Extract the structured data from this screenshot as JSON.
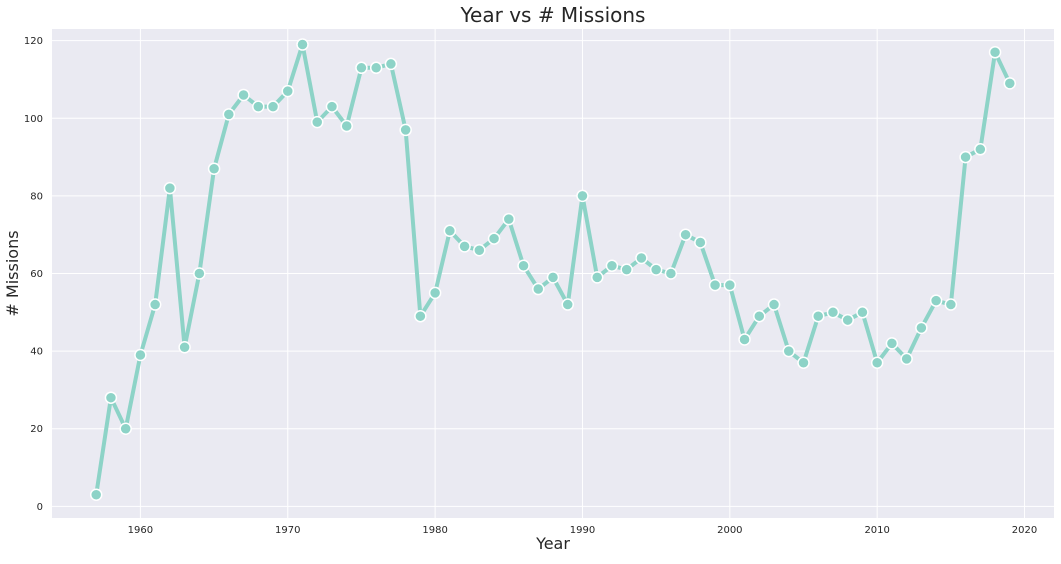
{
  "chart_data": {
    "type": "line",
    "title": "Year vs # Missions",
    "xlabel": "Year",
    "ylabel": "# Missions",
    "xlim": [
      1954,
      2022
    ],
    "ylim": [
      -3,
      123
    ],
    "xticks": [
      1960,
      1970,
      1980,
      1990,
      2000,
      2010,
      2020
    ],
    "yticks": [
      0,
      20,
      40,
      60,
      80,
      100,
      120
    ],
    "grid": true,
    "colors": {
      "background": "#eaeaf2",
      "line": "#8dd3c7",
      "marker_edge": "#ffffff",
      "grid": "#ffffff"
    },
    "series": [
      {
        "x": [
          1957,
          1958,
          1959,
          1960,
          1961,
          1962,
          1963,
          1964,
          1965,
          1966,
          1967,
          1968,
          1969,
          1970,
          1971,
          1972,
          1973,
          1974,
          1975,
          1976,
          1977,
          1978,
          1979,
          1980,
          1981,
          1982,
          1983,
          1984,
          1985,
          1986,
          1987,
          1988,
          1989,
          1990,
          1991,
          1992,
          1993,
          1994,
          1995,
          1996,
          1997,
          1998,
          1999,
          2000,
          2001,
          2002,
          2003,
          2004,
          2005,
          2006,
          2007,
          2008,
          2009,
          2010,
          2011,
          2012,
          2013,
          2014,
          2015,
          2016,
          2017,
          2018,
          2019
        ],
        "values": [
          3,
          28,
          20,
          39,
          52,
          82,
          41,
          60,
          87,
          101,
          106,
          103,
          103,
          107,
          119,
          99,
          103,
          98,
          113,
          113,
          114,
          97,
          49,
          55,
          71,
          67,
          66,
          69,
          74,
          62,
          56,
          59,
          52,
          80,
          59,
          62,
          61,
          64,
          61,
          60,
          70,
          68,
          57,
          57,
          43,
          49,
          52,
          40,
          37,
          49,
          50,
          48,
          50,
          37,
          42,
          38,
          46,
          53,
          52,
          90,
          92,
          117,
          109
        ]
      }
    ]
  }
}
